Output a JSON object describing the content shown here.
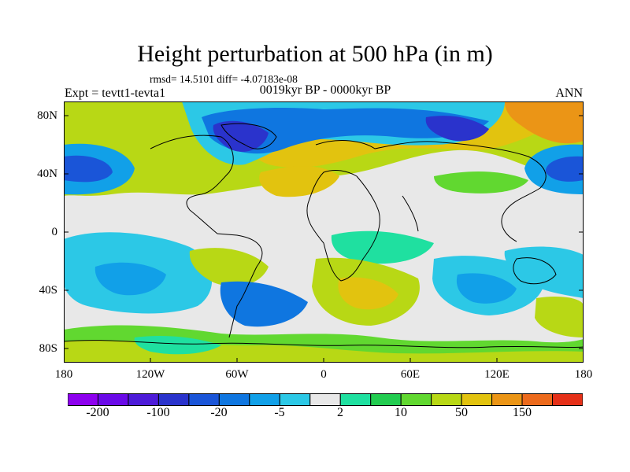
{
  "header": {
    "title": "Height perturbation at 500 hPa (in m)",
    "stats": "rmsd= 14.5101 diff= -4.07183e-08",
    "experiment": "Expt = tevtt1-tevta1",
    "period": "0019kyr BP - 0000kyr BP",
    "season": "ANN"
  },
  "axes": {
    "lat_labels": [
      "80N",
      "40N",
      "0",
      "40S",
      "80S"
    ],
    "lon_labels": [
      "180",
      "120W",
      "60W",
      "0",
      "60E",
      "120E",
      "180"
    ]
  },
  "colorbar": {
    "colors": [
      "#8d00ee",
      "#6a0ae8",
      "#4d1bd8",
      "#2a33cc",
      "#1a55d8",
      "#0f76e0",
      "#11a0e8",
      "#2cc8e6",
      "#e8e8e8",
      "#1fe0a0",
      "#22cc50",
      "#61d830",
      "#b8d815",
      "#e2c30f",
      "#eb9516",
      "#ec6a1c",
      "#e53018"
    ],
    "labels": [
      "-200",
      "-100",
      "-20",
      "-5",
      "2",
      "10",
      "50",
      "150"
    ]
  },
  "chart_data": {
    "type": "heatmap",
    "title": "Height perturbation at 500 hPa (in m)",
    "subtitle": "0019kyr BP - 0000kyr BP",
    "x_ticks": [
      "180",
      "120W",
      "60W",
      "0",
      "60E",
      "120E",
      "180"
    ],
    "y_ticks": [
      "80N",
      "40N",
      "0",
      "40S",
      "80S"
    ],
    "contour_levels": [
      "-200",
      "-100",
      "-20",
      "-5",
      "2",
      "10",
      "50",
      "150"
    ]
  }
}
